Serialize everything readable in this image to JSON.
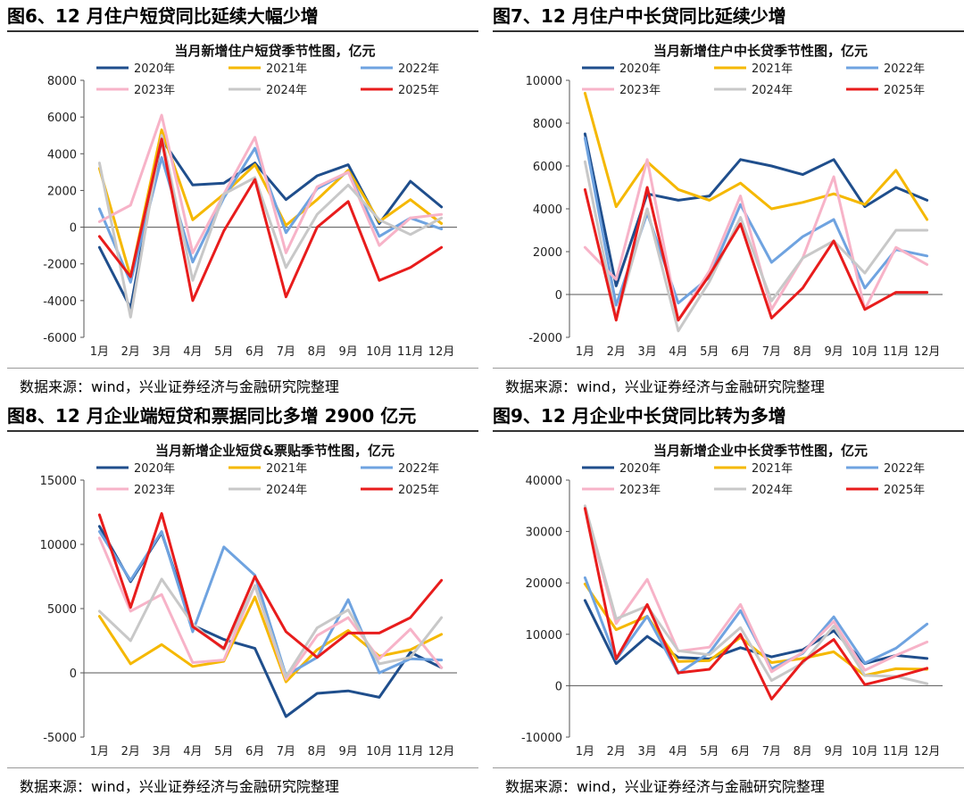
{
  "source_text": "数据来源：wind，兴业证券经济与金融研究院整理",
  "chart_data": [
    {
      "type": "line",
      "figure_title": "图6、12 月住户短贷同比延续大幅少增",
      "title": "当月新增住户短贷季节性图，亿元",
      "categories": [
        "1月",
        "2月",
        "3月",
        "4月",
        "5月",
        "6月",
        "7月",
        "8月",
        "9月",
        "10月",
        "11月",
        "12月"
      ],
      "ylim": [
        -6000,
        8000
      ],
      "yticks": [
        -6000,
        -4000,
        -2000,
        0,
        2000,
        4000,
        6000,
        8000
      ],
      "series": [
        {
          "name": "2020年",
          "color": "#1F4E8C",
          "values": [
            -1100,
            -4400,
            4800,
            2300,
            2400,
            3500,
            1500,
            2800,
            3400,
            200,
            2500,
            1100
          ]
        },
        {
          "name": "2021年",
          "color": "#F5B800",
          "values": [
            3200,
            -2700,
            5300,
            400,
            1800,
            3400,
            100,
            1500,
            3100,
            300,
            1500,
            200
          ]
        },
        {
          "name": "2022年",
          "color": "#6FA3E0",
          "values": [
            1000,
            -3000,
            3800,
            -1900,
            1600,
            4300,
            -300,
            2100,
            3000,
            -500,
            500,
            -100
          ]
        },
        {
          "name": "2023年",
          "color": "#F7B3C8",
          "values": [
            300,
            1200,
            6100,
            -1400,
            1800,
            4900,
            -1400,
            2200,
            3000,
            -1000,
            500,
            700
          ]
        },
        {
          "name": "2024年",
          "color": "#C8C8C8",
          "values": [
            3500,
            -4900,
            5000,
            -2900,
            1800,
            2700,
            -2200,
            700,
            2300,
            400,
            -400,
            500
          ]
        },
        {
          "name": "2025年",
          "color": "#E81C1C",
          "values": [
            -500,
            -2700,
            4800,
            -4000,
            -200,
            2600,
            -3800,
            0,
            1400,
            -2900,
            -2200,
            -1100
          ]
        }
      ]
    },
    {
      "type": "line",
      "figure_title": "图7、12 月住户中长贷同比延续少增",
      "title": "当月新增住户中长贷季节性图，亿元",
      "categories": [
        "1月",
        "2月",
        "3月",
        "4月",
        "5月",
        "6月",
        "7月",
        "8月",
        "9月",
        "10月",
        "11月",
        "12月"
      ],
      "ylim": [
        -2000,
        10000
      ],
      "yticks": [
        -2000,
        0,
        2000,
        4000,
        6000,
        8000,
        10000
      ],
      "series": [
        {
          "name": "2020年",
          "color": "#1F4E8C",
          "values": [
            7500,
            400,
            4700,
            4400,
            4600,
            6300,
            6000,
            5600,
            6300,
            4100,
            5000,
            4400
          ]
        },
        {
          "name": "2021年",
          "color": "#F5B800",
          "values": [
            9400,
            4100,
            6200,
            4900,
            4400,
            5200,
            4000,
            4300,
            4700,
            4200,
            5800,
            3500
          ]
        },
        {
          "name": "2022年",
          "color": "#6FA3E0",
          "values": [
            7300,
            -500,
            3800,
            -400,
            800,
            4200,
            1500,
            2700,
            3500,
            300,
            2100,
            1800
          ]
        },
        {
          "name": "2023年",
          "color": "#F7B3C8",
          "values": [
            2200,
            700,
            6300,
            -1200,
            1100,
            4600,
            -700,
            1700,
            5500,
            -700,
            2200,
            1400
          ]
        },
        {
          "name": "2024年",
          "color": "#C8C8C8",
          "values": [
            6200,
            -1100,
            4000,
            -1700,
            600,
            3600,
            -300,
            1700,
            2500,
            1000,
            3000,
            3000
          ]
        },
        {
          "name": "2025年",
          "color": "#E81C1C",
          "values": [
            4900,
            -1200,
            5000,
            -1200,
            900,
            3300,
            -1100,
            300,
            2500,
            -700,
            100,
            100
          ]
        }
      ]
    },
    {
      "type": "line",
      "figure_title": "图8、12 月企业端短贷和票据同比多增 2900 亿元",
      "title": "当月新增企业短贷&票贴季节性图，亿元",
      "categories": [
        "1月",
        "2月",
        "3月",
        "4月",
        "5月",
        "6月",
        "7月",
        "8月",
        "9月",
        "10月",
        "11月",
        "12月"
      ],
      "ylim": [
        -5000,
        15000
      ],
      "yticks": [
        -5000,
        0,
        5000,
        10000,
        15000
      ],
      "series": [
        {
          "name": "2020年",
          "color": "#1F4E8C",
          "values": [
            11400,
            7100,
            10900,
            3700,
            2600,
            1900,
            -3400,
            -1600,
            -1400,
            -1900,
            1600,
            400
          ]
        },
        {
          "name": "2021年",
          "color": "#F5B800",
          "values": [
            4400,
            700,
            2200,
            500,
            900,
            5900,
            -700,
            1800,
            3300,
            1300,
            1800,
            3000
          ]
        },
        {
          "name": "2022年",
          "color": "#6FA3E0",
          "values": [
            11000,
            7200,
            11000,
            3200,
            9800,
            7600,
            -200,
            1200,
            5700,
            0,
            1100,
            1000
          ]
        },
        {
          "name": "2023年",
          "color": "#F7B3C8",
          "values": [
            10500,
            4800,
            6100,
            800,
            1000,
            6800,
            -500,
            2900,
            4300,
            1100,
            3400,
            400
          ]
        },
        {
          "name": "2024年",
          "color": "#C8C8C8",
          "values": [
            4800,
            2500,
            7300,
            3800,
            1800,
            6800,
            -300,
            3500,
            4900,
            700,
            1200,
            4300
          ]
        },
        {
          "name": "2025年",
          "color": "#E81C1C",
          "values": [
            12300,
            5100,
            12400,
            3600,
            1900,
            7500,
            3200,
            1200,
            3100,
            3100,
            4300,
            7200
          ]
        }
      ]
    },
    {
      "type": "line",
      "figure_title": "图9、12 月企业中长贷同比转为多增",
      "title": "当月新增企业中长贷季节性图，亿元",
      "categories": [
        "1月",
        "2月",
        "3月",
        "4月",
        "5月",
        "6月",
        "7月",
        "8月",
        "9月",
        "10月",
        "11月",
        "12月"
      ],
      "ylim": [
        -10000,
        40000
      ],
      "yticks": [
        -10000,
        0,
        10000,
        20000,
        30000,
        40000
      ],
      "series": [
        {
          "name": "2020年",
          "color": "#1F4E8C",
          "values": [
            16600,
            4300,
            9600,
            5500,
            5200,
            7400,
            5600,
            7000,
            10700,
            4300,
            5900,
            5300
          ]
        },
        {
          "name": "2021年",
          "color": "#F5B800",
          "values": [
            19800,
            10900,
            13500,
            4700,
            4900,
            9400,
            4500,
            5300,
            6600,
            2000,
            3300,
            3200
          ]
        },
        {
          "name": "2022年",
          "color": "#6FA3E0",
          "values": [
            21000,
            5100,
            13500,
            2400,
            6400,
            14600,
            3300,
            6300,
            13400,
            4400,
            7300,
            12000
          ]
        },
        {
          "name": "2023年",
          "color": "#F7B3C8",
          "values": [
            34600,
            12100,
            20700,
            6700,
            7500,
            15800,
            2700,
            6500,
            12500,
            3000,
            5900,
            8500
          ]
        },
        {
          "name": "2024年",
          "color": "#C8C8C8",
          "values": [
            35000,
            13000,
            15500,
            6800,
            6000,
            11300,
            1000,
            4400,
            11600,
            2000,
            1800,
            400
          ]
        },
        {
          "name": "2025年",
          "color": "#E81C1C",
          "values": [
            34500,
            5200,
            15800,
            2500,
            3200,
            10000,
            -2600,
            4700,
            9000,
            200,
            1700,
            3400
          ]
        }
      ]
    }
  ]
}
